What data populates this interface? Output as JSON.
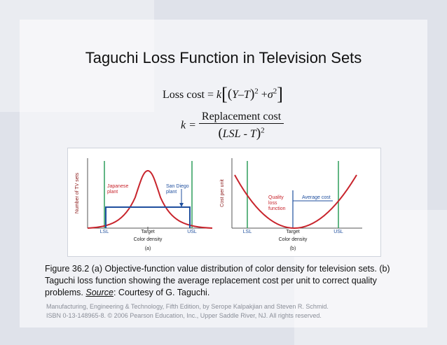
{
  "title": "Taguchi Loss Function in Television Sets",
  "formula": {
    "loss_lhs": "Loss cost =",
    "k_symbol": "k",
    "Y": "Y",
    "minus": "–",
    "T": "T",
    "exp2": "2",
    "plus": "+",
    "sigma": "σ",
    "k_eq": "k =",
    "numerator": "Replacement cost",
    "den_lsl": "LSL",
    "den_minus": " - ",
    "den_T": "T"
  },
  "figure": {
    "panel_a": {
      "ylabel": "Number of TV sets",
      "xlabel": "Color density",
      "tag": "(a)",
      "ticks": [
        "LSL",
        "Target",
        "USL"
      ],
      "label_japanese": [
        "Japanese",
        "plant"
      ],
      "label_sandiego": [
        "San Diego",
        "plant"
      ]
    },
    "panel_b": {
      "ylabel": "Cost per unit",
      "xlabel": "Color density",
      "tag": "(b)",
      "ticks": [
        "LSL",
        "Target",
        "USL"
      ],
      "label_quality": [
        "Quality",
        "loss",
        "function"
      ],
      "label_average": "Average cost"
    },
    "colors": {
      "red_curve": "#c8242c",
      "blue_curve": "#1f4f9e",
      "green_line": "#2e9d5a",
      "axis_label": "#8b1a1a"
    }
  },
  "caption": {
    "part1": "Figure 36.2  (a)  Objective-function value distribution of color density for television sets. (b)  Taguchi loss function showing the average replacement cost per unit to correct quality problems.  ",
    "source_label": "Source",
    "part2": ":  Courtesy of G. Taguchi."
  },
  "footer": {
    "line1": "Manufacturing, Engineering & Technology, Fifth Edition, by Serope Kalpakjian and Steven R. Schmid.",
    "line2": "ISBN 0-13-148965-8. © 2006 Pearson Education, Inc., Upper Saddle River, NJ.  All rights reserved."
  }
}
